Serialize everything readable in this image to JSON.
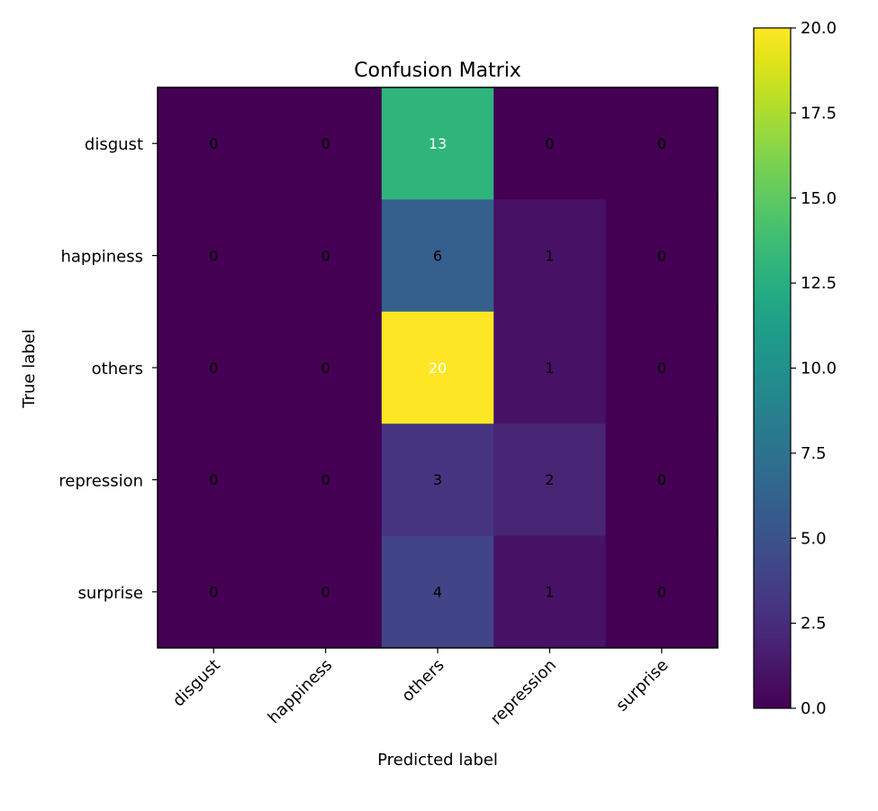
{
  "chart_data": {
    "type": "heatmap",
    "title": "Confusion Matrix",
    "xlabel": "Predicted label",
    "ylabel": "True label",
    "x_categories": [
      "disgust",
      "happiness",
      "others",
      "repression",
      "surprise"
    ],
    "y_categories": [
      "disgust",
      "happiness",
      "others",
      "repression",
      "surprise"
    ],
    "values": [
      [
        0,
        0,
        13,
        0,
        0
      ],
      [
        0,
        0,
        6,
        1,
        0
      ],
      [
        0,
        0,
        20,
        1,
        0
      ],
      [
        0,
        0,
        3,
        2,
        0
      ],
      [
        0,
        0,
        4,
        1,
        0
      ]
    ],
    "colormap": "viridis",
    "vmin": 0,
    "vmax": 20,
    "colorbar_ticks": [
      "0.0",
      "2.5",
      "5.0",
      "7.5",
      "10.0",
      "12.5",
      "15.0",
      "17.5",
      "20.0"
    ],
    "colorbar_placement": "right",
    "text_color_dark": "#000000",
    "text_color_light": "#ffffff",
    "grid": false
  }
}
